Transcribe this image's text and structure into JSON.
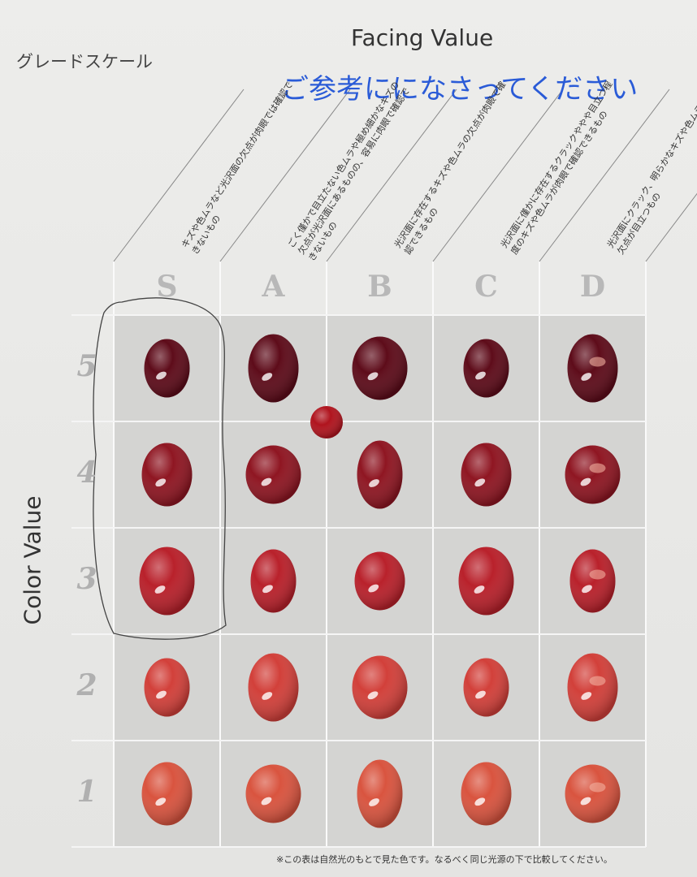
{
  "header": {
    "title": "グレードスケール",
    "facing_value": "Facing Value",
    "note": "ご参考にになさってください"
  },
  "columns": [
    {
      "grade": "S",
      "description": "キズや色ムラなど光沢面の欠点が肉眼では確認できないもの"
    },
    {
      "grade": "A",
      "description": "ごく僅かで目立たない色ムラや極め細かなキズの欠点が光沢面にあるものの、容易に肉眼で確認できないもの"
    },
    {
      "grade": "B",
      "description": "光沢面に存在するキズや色ムラの欠点が肉眼で確認できるもの"
    },
    {
      "grade": "C",
      "description": "光沢面に僅かに存在するクラックややや目立つ程度のキズや色ムラが肉眼で確認できるもの"
    },
    {
      "grade": "D",
      "description": "光沢面にクラック、明らかなキズや色ムラなどの欠点が目立つもの"
    }
  ],
  "rows": [
    "5",
    "4",
    "3",
    "2",
    "1"
  ],
  "axis_label": "Color Value",
  "footer": "※この表は自然光のもとで見た色です。なるべく同じ光源の下で比較してください。"
}
